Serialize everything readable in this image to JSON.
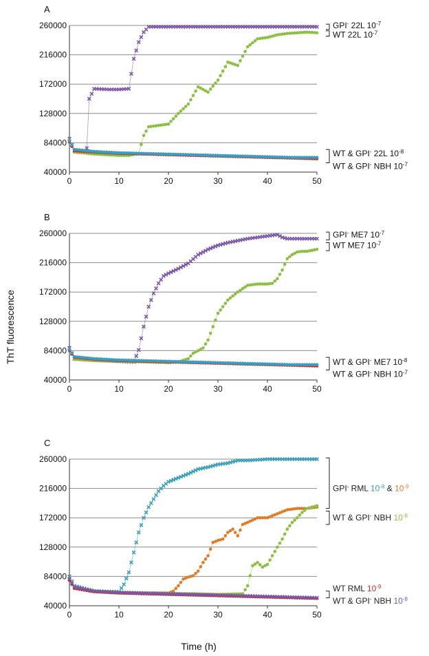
{
  "figure": {
    "ylabel": "ThT fluorescence",
    "xlabel": "Time (h)"
  },
  "colors": {
    "purple": "#7c57a8",
    "green": "#8cbf44",
    "red": "#c9302c",
    "blue": "#3a9ec2",
    "cyan": "#3a9fb8",
    "orange": "#e07b28",
    "grid": "#8c8c8c",
    "axis": "#333333"
  },
  "chart_data": [
    {
      "type": "scatter",
      "panel": "A",
      "xlim": [
        0,
        50
      ],
      "ylim": [
        40000,
        260000
      ],
      "xticks": [
        "0",
        "10",
        "20",
        "30",
        "40",
        "50"
      ],
      "yticks": [
        "40000",
        "84000",
        "128000",
        "172000",
        "216000",
        "260000"
      ],
      "grid": "horizontal",
      "series": [
        {
          "color": "purple",
          "marker": "x",
          "x": [
            0,
            1,
            2,
            3,
            3.5,
            4,
            5,
            8,
            10,
            12,
            13,
            14,
            15,
            16,
            20,
            25,
            30,
            35,
            40,
            45,
            50
          ],
          "y": [
            90000,
            72000,
            70000,
            72000,
            76000,
            150000,
            165000,
            164000,
            164000,
            165000,
            210000,
            235000,
            250000,
            258000,
            258000,
            258000,
            258000,
            258000,
            258000,
            258000,
            258000
          ]
        },
        {
          "color": "green",
          "marker": "o",
          "x": [
            0,
            1,
            5,
            10,
            12,
            14,
            15,
            16,
            18,
            20,
            22,
            24,
            26,
            28,
            30,
            32,
            34,
            36,
            38,
            40,
            42,
            44,
            46,
            48,
            50
          ],
          "y": [
            88000,
            70000,
            67000,
            65000,
            65000,
            68000,
            95000,
            108000,
            110000,
            112000,
            128000,
            142000,
            168000,
            160000,
            178000,
            205000,
            200000,
            228000,
            240000,
            242000,
            246000,
            248000,
            249000,
            250000,
            249000
          ]
        },
        {
          "color": "red",
          "marker": "o",
          "x": [
            0,
            1,
            5,
            10,
            15,
            20,
            25,
            30,
            35,
            40,
            45,
            50
          ],
          "y": [
            85000,
            72000,
            70000,
            68000,
            67000,
            66000,
            65000,
            64000,
            63000,
            62000,
            61000,
            60000
          ]
        },
        {
          "color": "blue",
          "marker": "o",
          "x": [
            0,
            1,
            5,
            10,
            15,
            20,
            25,
            30,
            35,
            40,
            45,
            50
          ],
          "y": [
            87000,
            74000,
            71000,
            69000,
            68000,
            67000,
            66000,
            65000,
            64000,
            63000,
            62000,
            62000
          ]
        }
      ],
      "annotations": [
        {
          "text": "GPI",
          "sup": "-",
          "mid": " 22L 10",
          "exp": "-7",
          "y": 260000,
          "bracket": [
            254000,
            262000
          ]
        },
        {
          "text": "WT 22L 10",
          "sup": "",
          "mid": "",
          "exp": "-7",
          "y": 246000,
          "bracket": [
            244000,
            252000
          ]
        },
        {
          "text": "WT & GPI",
          "sup": "-",
          "mid": " 22L 10",
          "exp": "-8",
          "y": 68000,
          "bracket": [
            54000,
            74000
          ]
        },
        {
          "text": "WT & GPI",
          "sup": "-",
          "mid": " NBH 10",
          "exp": "-7",
          "y": 49000,
          "bracket": null
        }
      ]
    },
    {
      "type": "scatter",
      "panel": "B",
      "xlim": [
        0,
        50
      ],
      "ylim": [
        40000,
        260000
      ],
      "xticks": [
        "0",
        "10",
        "20",
        "30",
        "40",
        "50"
      ],
      "yticks": [
        "40000",
        "84000",
        "128000",
        "172000",
        "216000",
        "260000"
      ],
      "grid": "horizontal",
      "series": [
        {
          "color": "purple",
          "marker": "x",
          "x": [
            0,
            1,
            5,
            10,
            13,
            14,
            15,
            16,
            17,
            18,
            19,
            20,
            22,
            24,
            26,
            28,
            30,
            32,
            34,
            36,
            38,
            40,
            42,
            43,
            44,
            46,
            48,
            50
          ],
          "y": [
            88000,
            72000,
            70000,
            68000,
            67000,
            85000,
            120000,
            150000,
            170000,
            185000,
            196000,
            200000,
            207000,
            215000,
            228000,
            236000,
            242000,
            246000,
            249000,
            252000,
            254000,
            256000,
            258000,
            254000,
            252000,
            252000,
            252000,
            252000
          ]
        },
        {
          "color": "green",
          "marker": "o",
          "x": [
            0,
            1,
            5,
            10,
            15,
            20,
            22,
            24,
            25,
            26,
            27,
            28,
            29,
            30,
            32,
            34,
            36,
            38,
            40,
            41,
            42,
            43,
            44,
            45,
            46,
            47,
            48,
            50
          ],
          "y": [
            86000,
            71000,
            69000,
            68000,
            67000,
            66000,
            67000,
            72000,
            80000,
            84000,
            88000,
            100000,
            120000,
            140000,
            160000,
            172000,
            182000,
            184000,
            184000,
            185000,
            192000,
            205000,
            222000,
            228000,
            232000,
            233000,
            233000,
            236000
          ]
        },
        {
          "color": "red",
          "marker": "o",
          "x": [
            0,
            1,
            5,
            10,
            15,
            20,
            25,
            30,
            35,
            40,
            45,
            50
          ],
          "y": [
            84000,
            74000,
            71000,
            69000,
            68000,
            67000,
            66000,
            65000,
            64000,
            63000,
            62000,
            61000
          ]
        },
        {
          "color": "blue",
          "marker": "o",
          "x": [
            0,
            1,
            5,
            10,
            15,
            20,
            25,
            30,
            35,
            40,
            45,
            50
          ],
          "y": [
            86000,
            75000,
            72000,
            70000,
            69000,
            68000,
            67000,
            66000,
            65000,
            64000,
            63000,
            63000
          ]
        }
      ],
      "annotations": [
        {
          "text": "GPI",
          "sup": "-",
          "mid": " ME7 10",
          "exp": "-7",
          "y": 258000,
          "bracket": [
            250000,
            262000
          ]
        },
        {
          "text": "WT ME7 10",
          "sup": "",
          "mid": "",
          "exp": "-7",
          "y": 242000,
          "bracket": [
            234000,
            246000
          ]
        },
        {
          "text": "WT & GPI",
          "sup": "-",
          "mid": " ME7 10",
          "exp": "-8",
          "y": 67000,
          "bracket": [
            55000,
            74000
          ]
        },
        {
          "text": "WT & GPI",
          "sup": "-",
          "mid": " NBH 10",
          "exp": "-7",
          "y": 49000,
          "bracket": null
        }
      ]
    },
    {
      "type": "scatter",
      "panel": "C",
      "xlim": [
        0,
        50
      ],
      "ylim": [
        40000,
        260000
      ],
      "xticks": [
        "0",
        "10",
        "20",
        "30",
        "40",
        "50"
      ],
      "yticks": [
        "40000",
        "84000",
        "128000",
        "172000",
        "216000",
        "260000"
      ],
      "grid": "horizontal",
      "series": [
        {
          "color": "cyan",
          "marker": "x",
          "x": [
            0,
            1,
            5,
            10,
            11,
            12,
            13,
            14,
            15,
            16,
            17,
            18,
            19,
            20,
            22,
            24,
            26,
            28,
            30,
            32,
            34,
            36,
            38,
            40,
            45,
            50
          ],
          "y": [
            84000,
            70000,
            62000,
            61000,
            72000,
            90000,
            120000,
            150000,
            172000,
            188000,
            200000,
            212000,
            220000,
            226000,
            232000,
            238000,
            245000,
            248000,
            252000,
            254000,
            258000,
            258000,
            259000,
            260000,
            260000,
            260000
          ]
        },
        {
          "color": "orange",
          "marker": "o",
          "x": [
            0,
            1,
            5,
            10,
            15,
            20,
            21,
            22,
            23,
            24,
            25,
            26,
            27,
            28,
            29,
            30,
            31,
            32,
            33,
            34,
            35,
            36,
            38,
            40,
            42,
            44,
            46,
            48,
            50
          ],
          "y": [
            80000,
            68000,
            62000,
            60000,
            59000,
            59000,
            62000,
            70000,
            80000,
            83000,
            85000,
            92000,
            105000,
            115000,
            135000,
            138000,
            140000,
            150000,
            155000,
            145000,
            162000,
            165000,
            172000,
            172000,
            178000,
            184000,
            186000,
            186000,
            188000
          ]
        },
        {
          "color": "green",
          "marker": "o",
          "x": [
            0,
            1,
            5,
            10,
            15,
            20,
            25,
            30,
            35,
            36,
            37,
            38,
            39,
            40,
            41,
            42,
            43,
            44,
            45,
            46,
            47,
            48,
            49,
            50
          ],
          "y": [
            78000,
            68000,
            62000,
            60000,
            59000,
            58000,
            58000,
            57000,
            58000,
            70000,
            100000,
            105000,
            98000,
            102000,
            115000,
            128000,
            140000,
            155000,
            165000,
            172000,
            180000,
            186000,
            188000,
            190000
          ]
        },
        {
          "color": "red",
          "marker": "o",
          "x": [
            0,
            1,
            5,
            10,
            15,
            20,
            25,
            30,
            35,
            40,
            45,
            50
          ],
          "y": [
            78000,
            66000,
            61000,
            59000,
            58000,
            57000,
            56000,
            55000,
            54000,
            53000,
            52000,
            51000
          ]
        },
        {
          "color": "purple",
          "marker": "x",
          "x": [
            0,
            1,
            5,
            10,
            15,
            20,
            25,
            30,
            35,
            40,
            45,
            50
          ],
          "y": [
            80000,
            68000,
            62000,
            60000,
            59000,
            58000,
            57000,
            56000,
            55000,
            54000,
            53000,
            52000
          ]
        }
      ],
      "annotations": [
        {
          "parts": [
            {
              "t": "GPI",
              "c": "#222"
            },
            {
              "t": "-",
              "c": "#222",
              "sup": true
            },
            {
              "t": " RML ",
              "c": "#222"
            },
            {
              "t": "10",
              "c": "#3a9fb8"
            },
            {
              "t": "-8",
              "c": "#3a9fb8",
              "sup": true
            },
            {
              "t": " & ",
              "c": "#222"
            },
            {
              "t": "10",
              "c": "#e07b28"
            },
            {
              "t": "-9",
              "c": "#e07b28",
              "sup": true
            }
          ],
          "y": 216000,
          "bracket": [
            186000,
            262000
          ]
        },
        {
          "parts": [
            {
              "t": "WT & GPI",
              "c": "#222"
            },
            {
              "t": "-",
              "c": "#222",
              "sup": true
            },
            {
              "t": " NBH ",
              "c": "#222"
            },
            {
              "t": "10",
              "c": "#8cbf44"
            },
            {
              "t": "-8",
              "c": "#8cbf44",
              "sup": true
            }
          ],
          "y": 172000,
          "bracket": [
            162000,
            182000
          ]
        },
        {
          "parts": [
            {
              "t": "WT RML ",
              "c": "#222"
            },
            {
              "t": "10",
              "c": "#c9302c"
            },
            {
              "t": "-9",
              "c": "#c9302c",
              "sup": true
            }
          ],
          "y": 66000,
          "bracket": [
            52000,
            62000
          ]
        },
        {
          "parts": [
            {
              "t": "WT & GPI",
              "c": "#222"
            },
            {
              "t": "-",
              "c": "#222",
              "sup": true
            },
            {
              "t": " NBH ",
              "c": "#222"
            },
            {
              "t": "10",
              "c": "#7c57a8"
            },
            {
              "t": "-8",
              "c": "#7c57a8",
              "sup": true
            }
          ],
          "y": 47000,
          "bracket": null
        }
      ]
    }
  ]
}
